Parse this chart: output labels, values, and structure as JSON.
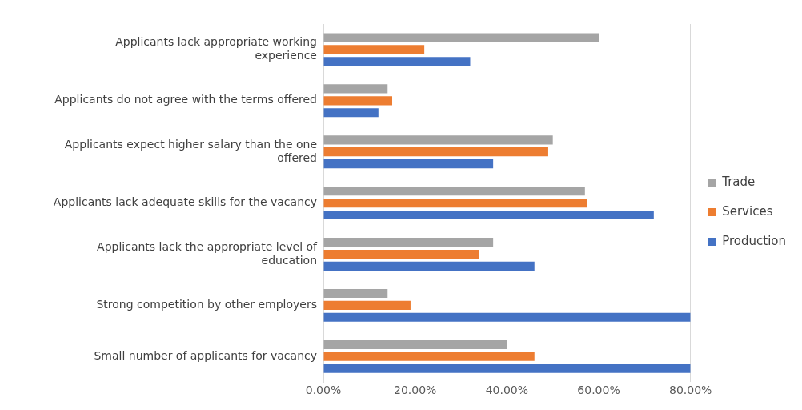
{
  "chart_data": {
    "type": "bar",
    "orientation": "horizontal",
    "categories": [
      "Applicants lack appropriate working experience",
      "Applicants do not agree with the terms offered",
      "Applicants expect higher salary than the one offered",
      "Applicants lack adequate skills for the vacancy",
      "Applicants lack the appropriate level of education",
      "Strong competition by other employers",
      "Small number of applicants for vacancy"
    ],
    "series": [
      {
        "name": "Trade",
        "color": "#a5a5a5",
        "values": [
          60,
          14,
          50,
          57,
          37,
          14,
          40
        ]
      },
      {
        "name": "Services",
        "color": "#ed7d31",
        "values": [
          22,
          15,
          49,
          57.5,
          34,
          19,
          46
        ]
      },
      {
        "name": "Production",
        "color": "#4472c4",
        "values": [
          32,
          12,
          37,
          72,
          46,
          80,
          80
        ]
      }
    ],
    "xlim": [
      0,
      80
    ],
    "xticks": [
      {
        "value": 0,
        "label": "0.00%"
      },
      {
        "value": 20,
        "label": "20.00%"
      },
      {
        "value": 40,
        "label": "40.00%"
      },
      {
        "value": 60,
        "label": "60.00%"
      },
      {
        "value": 80,
        "label": "80.00%"
      }
    ],
    "grid": "x",
    "legend": "right"
  }
}
